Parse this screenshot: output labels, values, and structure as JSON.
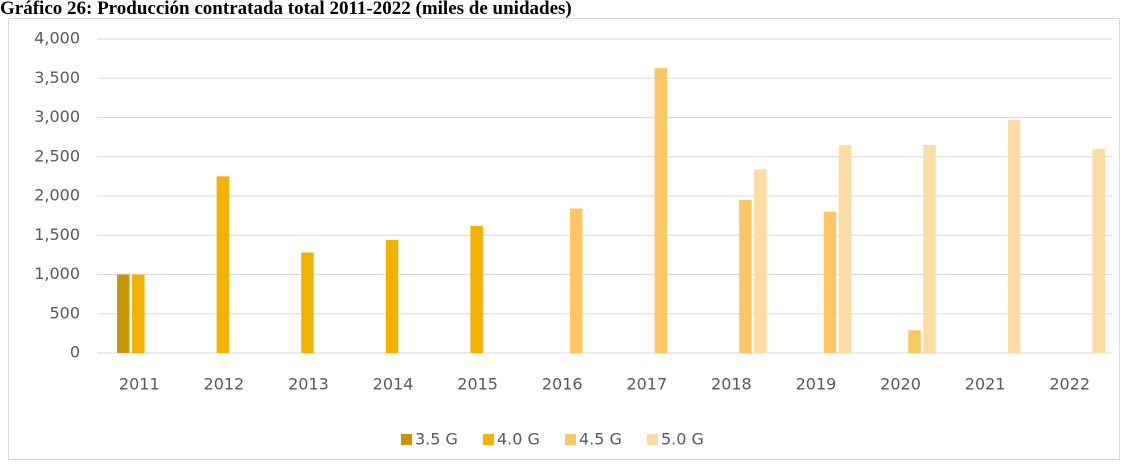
{
  "chart_data": {
    "type": "bar",
    "title": "Gráfico 26: Producción contratada total 2011-2022 (miles de unidades)",
    "categories": [
      "2011",
      "2012",
      "2013",
      "2014",
      "2015",
      "2016",
      "2017",
      "2018",
      "2019",
      "2020",
      "2021",
      "2022"
    ],
    "series": [
      {
        "name": "3.5 G",
        "color": "#c8960a",
        "values": [
          1000,
          null,
          null,
          null,
          null,
          null,
          null,
          null,
          null,
          null,
          null,
          null
        ]
      },
      {
        "name": "4.0 G",
        "color": "#f2b200",
        "values": [
          1000,
          2250,
          1280,
          1440,
          1620,
          null,
          null,
          null,
          null,
          null,
          null,
          null
        ]
      },
      {
        "name": "4.5 G",
        "color": "#fac764",
        "values": [
          null,
          null,
          null,
          null,
          null,
          1840,
          3630,
          1950,
          1800,
          290,
          null,
          null
        ]
      },
      {
        "name": "5.0 G",
        "color": "#fcdca3",
        "values": [
          null,
          null,
          null,
          null,
          null,
          null,
          null,
          2340,
          2650,
          2650,
          2970,
          2600
        ]
      }
    ],
    "ylim": [
      0,
      4000
    ],
    "yticks": [
      0,
      500,
      {
        "value": 1000,
        "label": "1,000"
      },
      {
        "value": 1500,
        "label": "1,500"
      },
      {
        "value": 2000,
        "label": "2,000"
      },
      {
        "value": 2500,
        "label": "2,500"
      },
      {
        "value": 3000,
        "label": "3,000"
      },
      {
        "value": 3500,
        "label": "3,500"
      },
      {
        "value": 4000,
        "label": "4,000"
      }
    ],
    "grid": true,
    "legend": "bottom"
  }
}
